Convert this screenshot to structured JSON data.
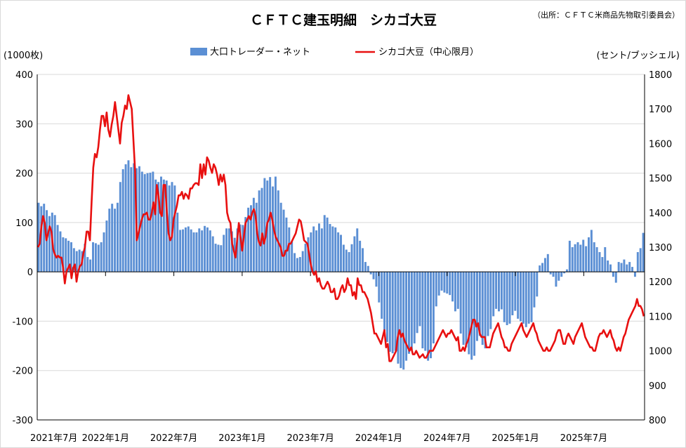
{
  "chart_data": {
    "type": "bar+line",
    "title": "ＣＦＴＣ建玉明細　シカゴ大豆",
    "source": "（出所：ＣＦＴＣ米商品先物取引委員会）",
    "y_left_label": "(1000枚)",
    "y_right_label": "(セント/ブッシェル)",
    "y_left_range": [
      -300,
      400
    ],
    "y_right_range": [
      800,
      1800
    ],
    "y_left_ticks": [
      "400",
      "300",
      "200",
      "100",
      "0",
      "-100",
      "-200",
      "-300"
    ],
    "y_right_ticks": [
      "1800",
      "1700",
      "1600",
      "1500",
      "1400",
      "1300",
      "1200",
      "1100",
      "1000",
      "900",
      "800"
    ],
    "x_tick_labels": [
      "2021年7月",
      "2022年1月",
      "2022年7月",
      "2023年1月",
      "2023年7月",
      "2024年1月",
      "2024年7月",
      "2025年1月",
      "2025年7月"
    ],
    "grid": "horizontal",
    "legend_position": "top",
    "colors": {
      "bars": "#5b8fd4",
      "line": "#e81010",
      "grid": "#d9d9d9"
    },
    "series": [
      {
        "name": "大口トレーダー・ネット",
        "type": "bar",
        "axis": "left",
        "values": [
          140,
          133,
          138,
          125,
          113,
          120,
          115,
          95,
          82,
          70,
          68,
          63,
          60,
          48,
          42,
          45,
          42,
          57,
          30,
          25,
          60,
          58,
          55,
          60,
          80,
          104,
          128,
          138,
          128,
          140,
          182,
          208,
          218,
          226,
          212,
          220,
          210,
          214,
          203,
          198,
          200,
          201,
          203,
          187,
          182,
          193,
          187,
          185,
          175,
          182,
          175,
          120,
          85,
          86,
          90,
          92,
          86,
          80,
          80,
          88,
          84,
          93,
          90,
          84,
          72,
          57,
          55,
          54,
          75,
          88,
          88,
          82,
          69,
          88,
          96,
          95,
          111,
          130,
          135,
          150,
          140,
          165,
          170,
          190,
          185,
          192,
          173,
          193,
          165,
          140,
          126,
          110,
          90,
          62,
          38,
          28,
          30,
          42,
          57,
          70,
          80,
          92,
          84,
          98,
          88,
          115,
          110,
          97,
          92,
          90,
          80,
          75,
          55,
          45,
          40,
          56,
          72,
          88,
          63,
          48,
          20,
          12,
          -5,
          -15,
          -30,
          -62,
          -95,
          -120,
          -142,
          -162,
          -165,
          -160,
          -186,
          -195,
          -198,
          -180,
          -166,
          -158,
          -145,
          -124,
          -110,
          -155,
          -160,
          -180,
          -175,
          -145,
          -70,
          -48,
          -38,
          -42,
          -44,
          -47,
          -60,
          -80,
          -75,
          -125,
          -148,
          -153,
          -167,
          -178,
          -170,
          -140,
          -130,
          -148,
          -155,
          -130,
          -116,
          -90,
          -75,
          -80,
          -76,
          -102,
          -108,
          -105,
          -88,
          -79,
          -95,
          -100,
          -105,
          -112,
          -105,
          -102,
          -72,
          -50,
          13,
          18,
          28,
          36,
          -5,
          -10,
          -30,
          -18,
          -10,
          -3,
          5,
          63,
          50,
          56,
          60,
          55,
          65,
          52,
          70,
          85,
          60,
          50,
          40,
          30,
          50,
          23,
          15,
          -10,
          -22,
          20,
          18,
          25,
          15,
          20,
          10,
          -10,
          40,
          48,
          79
        ]
      },
      {
        "name": "シカゴ大豆（中心限月）",
        "type": "line",
        "axis": "right",
        "values": [
          1300,
          1310,
          1360,
          1390,
          1370,
          1320,
          1340,
          1360,
          1345,
          1295,
          1280,
          1270,
          1275,
          1270,
          1270,
          1240,
          1195,
          1230,
          1240,
          1250,
          1210,
          1240,
          1250,
          1200,
          1230,
          1245,
          1250,
          1280,
          1300,
          1345,
          1345,
          1320,
          1430,
          1530,
          1570,
          1560,
          1590,
          1640,
          1680,
          1680,
          1650,
          1690,
          1640,
          1620,
          1655,
          1680,
          1720,
          1680,
          1640,
          1600,
          1660,
          1680,
          1710,
          1700,
          1740,
          1720,
          1700,
          1610,
          1520,
          1320,
          1340,
          1360,
          1380,
          1395,
          1395,
          1400,
          1380,
          1380,
          1400,
          1430,
          1395,
          1480,
          1450,
          1400,
          1390,
          1480,
          1480,
          1400,
          1340,
          1320,
          1330,
          1380,
          1400,
          1420,
          1450,
          1450,
          1460,
          1440,
          1455,
          1450,
          1440,
          1470,
          1470,
          1480,
          1485,
          1485,
          1480,
          1540,
          1500,
          1540,
          1510,
          1560,
          1550,
          1530,
          1515,
          1540,
          1530,
          1510,
          1480,
          1510,
          1490,
          1510,
          1480,
          1400,
          1380,
          1370,
          1310,
          1290,
          1270,
          1320,
          1370,
          1330,
          1290,
          1330,
          1370,
          1380,
          1390,
          1380,
          1400,
          1410,
          1390,
          1340,
          1315,
          1305,
          1340,
          1310,
          1330,
          1370,
          1380,
          1400,
          1380,
          1350,
          1330,
          1320,
          1310,
          1300,
          1275,
          1275,
          1290,
          1290,
          1310,
          1310,
          1320,
          1330,
          1340,
          1360,
          1380,
          1375,
          1350,
          1320,
          1315,
          1310,
          1280,
          1250,
          1230,
          1220,
          1230,
          1200,
          1210,
          1190,
          1180,
          1180,
          1190,
          1200,
          1190,
          1170,
          1170,
          1180,
          1150,
          1150,
          1160,
          1180,
          1190,
          1170,
          1180,
          1210,
          1190,
          1190,
          1160,
          1170,
          1150,
          1210,
          1190,
          1190,
          1170,
          1170,
          1160,
          1150,
          1130,
          1110,
          1080,
          1050,
          1050,
          1040,
          1030,
          1020,
          1040,
          1060,
          1010,
          1020,
          970,
          970,
          980,
          990,
          1000,
          1040,
          1060,
          1040,
          1050,
          1030,
          1020,
          1010,
          1000,
          1010,
          990,
          990,
          1000,
          990,
          980,
          985,
          990,
          980,
          980,
          990,
          1000,
          1000,
          1000,
          1010,
          1020,
          1030,
          1040,
          1050,
          1060,
          1050,
          1040,
          1050,
          1050,
          1060,
          1050,
          1040,
          1030,
          1040,
          1000,
          1000,
          1010,
          1000,
          1020,
          1030,
          1050,
          1070,
          1090,
          1090,
          1070,
          1080,
          1050,
          1040,
          1040,
          1040,
          1010,
          1010,
          1010,
          1030,
          1050,
          1060,
          1070,
          1080,
          1060,
          1040,
          1030,
          1010,
          1010,
          1000,
          1000,
          1020,
          1030,
          1040,
          1050,
          1060,
          1070,
          1080,
          1060,
          1050,
          1040,
          1050,
          1060,
          1070,
          1080,
          1060,
          1050,
          1030,
          1020,
          1010,
          1000,
          1000,
          1010,
          1000,
          1000,
          1010,
          1020,
          1030,
          1050,
          1060,
          1060,
          1040,
          1020,
          1020,
          1040,
          1050,
          1040,
          1030,
          1020,
          1040,
          1050,
          1060,
          1070,
          1080,
          1060,
          1040,
          1030,
          1020,
          1010,
          1010,
          1000,
          1000,
          1020,
          1040,
          1050,
          1050,
          1060,
          1050,
          1040,
          1050,
          1060,
          1040,
          1030,
          1010,
          1000,
          1010,
          1000,
          1020,
          1040,
          1050,
          1070,
          1090,
          1100,
          1110,
          1120,
          1130,
          1150,
          1130,
          1130,
          1120,
          1100
        ]
      }
    ]
  }
}
